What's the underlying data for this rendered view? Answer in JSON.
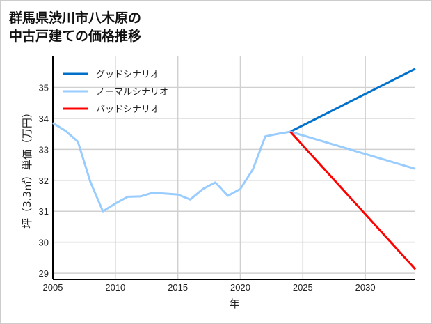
{
  "chart_data": {
    "type": "line",
    "title": [
      "群馬県渋川市八木原の",
      "中古戸建ての価格推移"
    ],
    "xlabel": "年",
    "ylabel": "坪（3.3㎡）単価（万円）",
    "xlim": [
      2005,
      2034
    ],
    "ylim": [
      28.8,
      36
    ],
    "xticks": [
      2005,
      2010,
      2015,
      2020,
      2025,
      2030
    ],
    "yticks": [
      29,
      30,
      31,
      32,
      33,
      34,
      35
    ],
    "grid": true,
    "legend_position": "top-left",
    "series": [
      {
        "name": "グッドシナリオ",
        "color": "#0070c8",
        "x": [
          2024,
          2034
        ],
        "y": [
          33.57,
          35.6
        ]
      },
      {
        "name": "ノーマルシナリオ",
        "color": "#99ccff",
        "x": [
          2005,
          2006,
          2007,
          2008,
          2009,
          2010,
          2011,
          2012,
          2013,
          2014,
          2015,
          2016,
          2017,
          2018,
          2019,
          2020,
          2021,
          2022,
          2023,
          2024,
          2034
        ],
        "y": [
          33.85,
          33.6,
          33.25,
          31.95,
          31.0,
          31.25,
          31.47,
          31.48,
          31.6,
          31.57,
          31.54,
          31.38,
          31.72,
          31.93,
          31.5,
          31.72,
          32.35,
          33.42,
          33.5,
          33.57,
          32.37
        ]
      },
      {
        "name": "バッドシナリオ",
        "color": "#ff0000",
        "x": [
          2024,
          2034
        ],
        "y": [
          33.57,
          29.13
        ]
      }
    ]
  }
}
